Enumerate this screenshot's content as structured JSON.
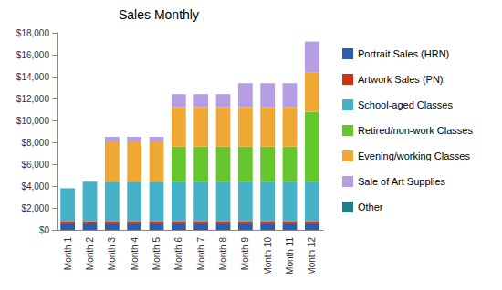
{
  "chart_data": {
    "type": "bar",
    "title": "Sales Monthly",
    "stacked": true,
    "grid": false,
    "legend": "right",
    "categories": [
      "Month 1",
      "Month 2",
      "Month 3",
      "Month 4",
      "Month 5",
      "Month 6",
      "Month 7",
      "Month 8",
      "Month 9",
      "Month 10",
      "Month 11",
      "Month 12"
    ],
    "series": [
      {
        "name": "Portrait Sales (HRN)",
        "color": "#2a5db0",
        "values": [
          500,
          500,
          500,
          500,
          500,
          500,
          500,
          500,
          500,
          500,
          500,
          500
        ]
      },
      {
        "name": "Artwork Sales (PN)",
        "color": "#cc3311",
        "values": [
          300,
          300,
          300,
          300,
          300,
          300,
          300,
          300,
          300,
          300,
          300,
          300
        ]
      },
      {
        "name": "School-aged Classes",
        "color": "#45b2c8",
        "values": [
          3000,
          3600,
          3600,
          3600,
          3600,
          3600,
          3600,
          3600,
          3600,
          3600,
          3600,
          3600
        ]
      },
      {
        "name": "Retired/non-work Classes",
        "color": "#66c62e",
        "values": [
          0,
          0,
          0,
          0,
          0,
          3200,
          3200,
          3200,
          3200,
          3200,
          3200,
          6400
        ]
      },
      {
        "name": "Evening/working Classes",
        "color": "#f0a835",
        "values": [
          0,
          0,
          3600,
          3600,
          3600,
          3600,
          3600,
          3600,
          3600,
          3600,
          3600,
          3600
        ]
      },
      {
        "name": "Sale of Art Supplies",
        "color": "#b79de3",
        "values": [
          0,
          0,
          500,
          500,
          500,
          1200,
          1200,
          1200,
          2200,
          2200,
          2200,
          2800
        ]
      },
      {
        "name": "Other",
        "color": "#1f7f8c",
        "values": [
          0,
          0,
          0,
          0,
          0,
          0,
          0,
          0,
          0,
          0,
          0,
          0
        ]
      }
    ],
    "ylim": [
      0,
      18000
    ],
    "yticks": [
      {
        "value": 0,
        "label": "$0"
      },
      {
        "value": 2000,
        "label": "$2,000"
      },
      {
        "value": 4000,
        "label": "$4,000"
      },
      {
        "value": 6000,
        "label": "$6,000"
      },
      {
        "value": 8000,
        "label": "$8,000"
      },
      {
        "value": 10000,
        "label": "$10,000"
      },
      {
        "value": 12000,
        "label": "$12,000"
      },
      {
        "value": 14000,
        "label": "$14,000"
      },
      {
        "value": 16000,
        "label": "$16,000"
      },
      {
        "value": 18000,
        "label": "$18,000"
      }
    ]
  }
}
